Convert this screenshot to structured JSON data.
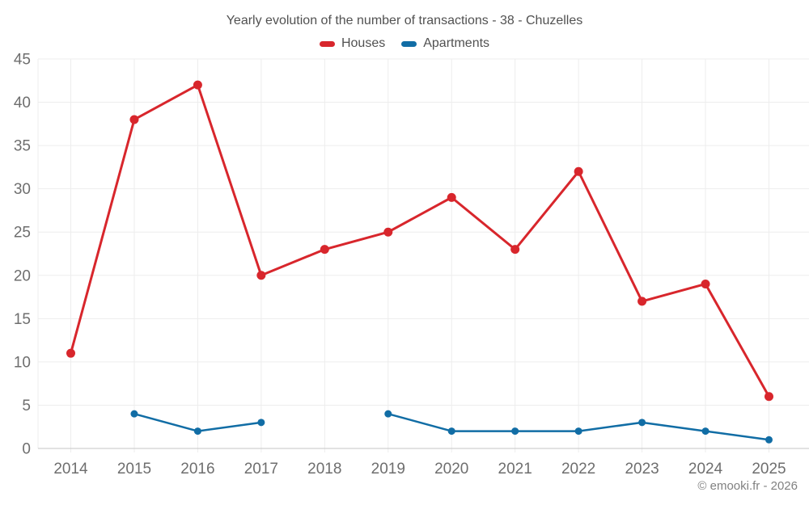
{
  "title": "Yearly evolution of the number of transactions - 38 - Chuzelles",
  "footer": {
    "copyright": "© emooki.fr - 2026"
  },
  "colors": {
    "houses": "#d8262c",
    "apartments": "#116da5",
    "grid": "#ededed",
    "axis_line": "#c6c6c6",
    "tick_text": "#6e6e6e",
    "title_text": "#515151",
    "footer_text": "#818181",
    "background": "#ffffff"
  },
  "chart_data": {
    "type": "line",
    "title": "Yearly evolution of the number of transactions - 38 - Chuzelles",
    "xlabel": "",
    "ylabel": "",
    "x": [
      2014,
      2015,
      2016,
      2017,
      2018,
      2019,
      2020,
      2021,
      2022,
      2023,
      2024,
      2025
    ],
    "series": [
      {
        "name": "Houses",
        "color": "#d8262c",
        "values": [
          11,
          38,
          42,
          20,
          23,
          25,
          29,
          23,
          32,
          17,
          19,
          6
        ]
      },
      {
        "name": "Apartments",
        "color": "#116da5",
        "values": [
          null,
          4,
          2,
          3,
          null,
          4,
          2,
          2,
          2,
          3,
          2,
          1
        ]
      }
    ],
    "ylim": [
      0,
      45
    ],
    "ytick_step": 5,
    "grid": true,
    "legend_position": "top"
  }
}
